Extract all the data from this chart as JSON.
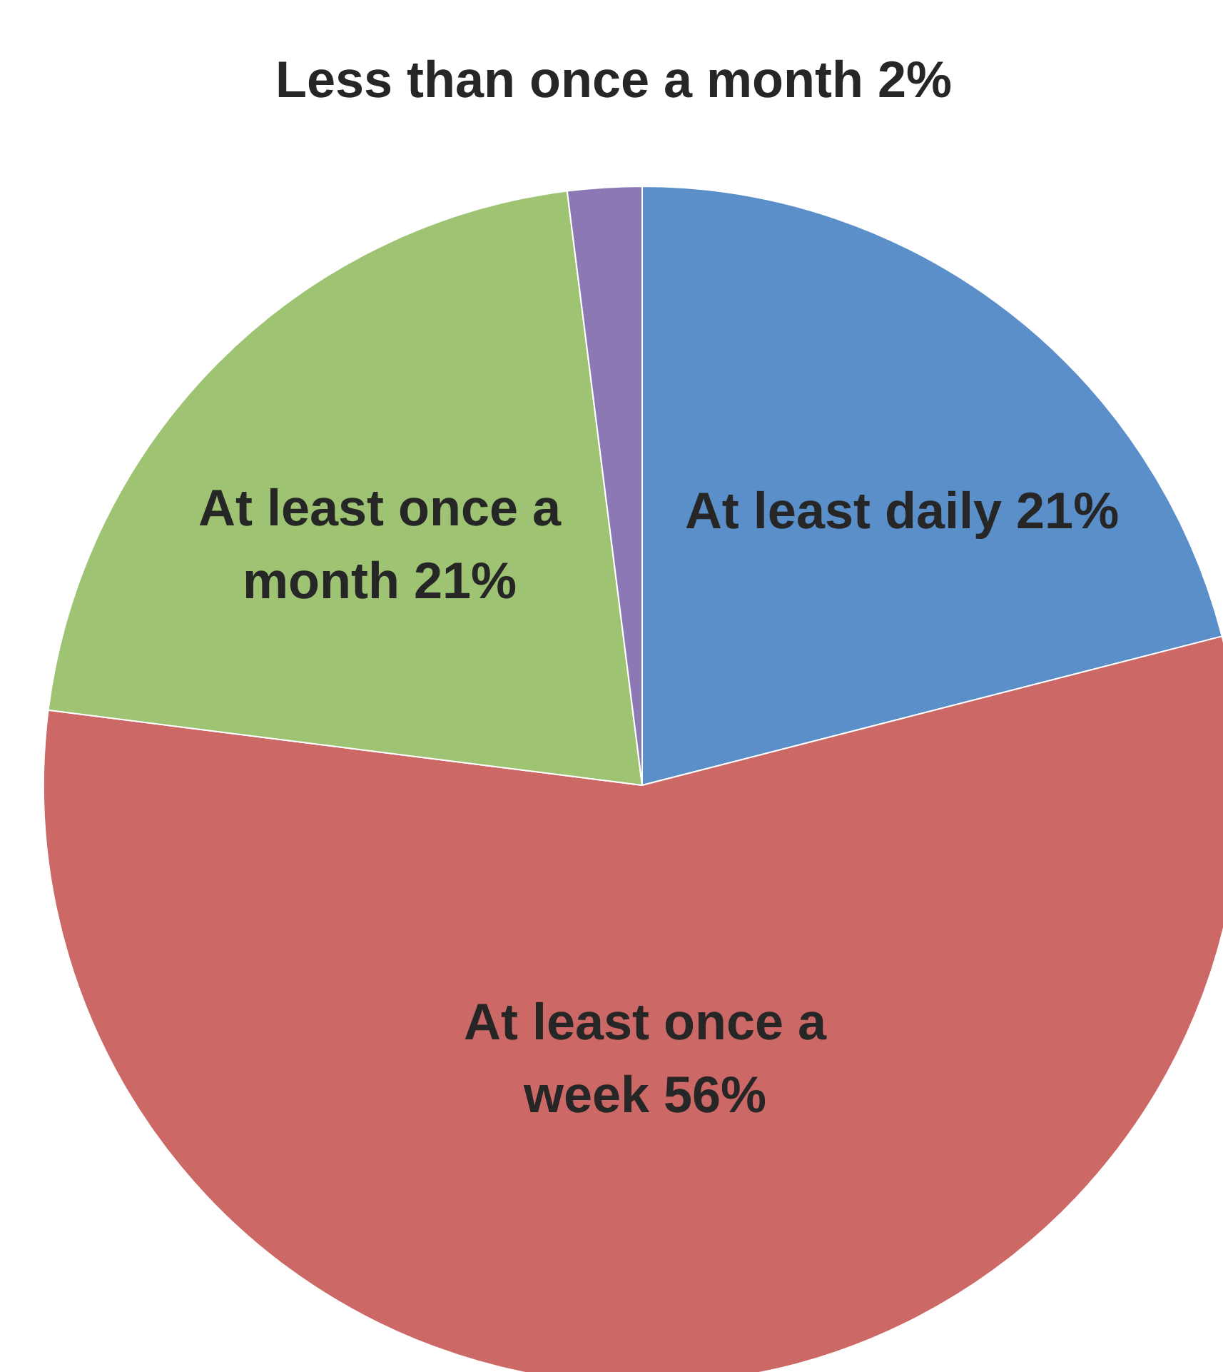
{
  "chart_data": {
    "type": "pie",
    "categories": [
      "At least daily",
      "At least once a week",
      "At least once a month",
      "Less than once a month"
    ],
    "values": [
      21,
      56,
      21,
      2
    ],
    "value_labels": [
      "21%",
      "56%",
      "21%",
      "2%"
    ],
    "colors": [
      "#5b8fc9",
      "#cc6966",
      "#9dc373",
      "#8b78b5"
    ],
    "legend": false
  }
}
